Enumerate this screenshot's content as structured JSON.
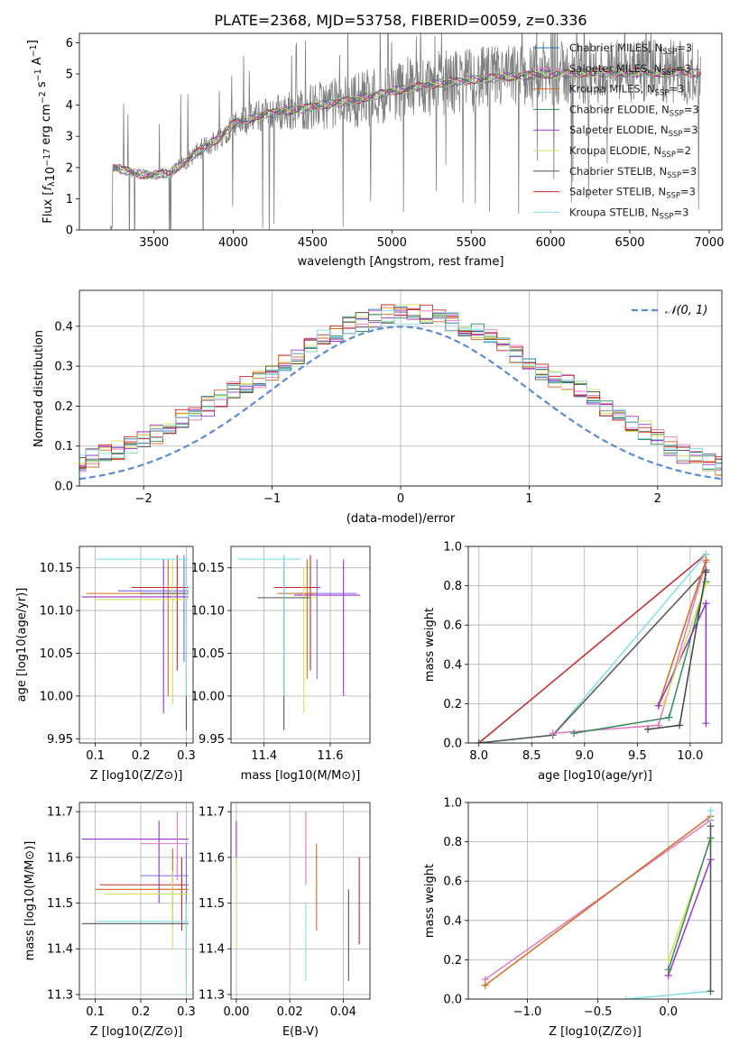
{
  "chart_data": [
    {
      "type": "line",
      "title": "PLATE=2368, MJD=53758, FIBERID=0059, z=0.336",
      "xlabel": "wavelength [Angstrom, rest frame]",
      "ylabel": "Flux [f_λ 10^-17 erg cm^-2 s^-1 A^-1]",
      "xlim": [
        3030,
        7080
      ],
      "ylim": [
        0,
        6.3
      ],
      "xticks": [
        "3500",
        "4000",
        "4500",
        "5000",
        "5500",
        "6000",
        "6500",
        "7000"
      ],
      "yticks": [
        "0",
        "1",
        "2",
        "3",
        "4",
        "5",
        "6"
      ],
      "observed_color": "#808080",
      "continuum": [
        [
          3240,
          2.0
        ],
        [
          3400,
          1.8
        ],
        [
          3500,
          1.75
        ],
        [
          3600,
          1.85
        ],
        [
          3700,
          2.2
        ],
        [
          3800,
          2.6
        ],
        [
          3900,
          2.9
        ],
        [
          4000,
          3.4
        ],
        [
          4200,
          3.7
        ],
        [
          4500,
          3.95
        ],
        [
          4800,
          4.2
        ],
        [
          5000,
          4.45
        ],
        [
          5300,
          4.7
        ],
        [
          5600,
          4.85
        ],
        [
          6000,
          5.0
        ],
        [
          6400,
          5.05
        ],
        [
          6900,
          5.05
        ]
      ],
      "legend": [
        {
          "name": "Chabrier MILES, N_SSP=3",
          "base": "Chabrier MILES, N",
          "sub": "SSP",
          "tail": "=3",
          "color": "#1f77b4"
        },
        {
          "name": "Salpeter MILES, N_SSP=3",
          "base": "Salpeter MILES, N",
          "sub": "SSP",
          "tail": "=3",
          "color": "#e377c2"
        },
        {
          "name": "Kroupa MILES, N_SSP=3",
          "base": "Kroupa MILES, N",
          "sub": "SSP",
          "tail": "=3",
          "color": "#d2691e"
        },
        {
          "name": "Chabrier ELODIE, N_SSP=3",
          "base": "Chabrier ELODIE, N",
          "sub": "SSP",
          "tail": "=3",
          "color": "#2e8b57"
        },
        {
          "name": "Salpeter ELODIE, N_SSP=3",
          "base": "Salpeter ELODIE, N",
          "sub": "SSP",
          "tail": "=3",
          "color": "#9932cc"
        },
        {
          "name": "Kroupa ELODIE, N_SSP=2",
          "base": "Kroupa ELODIE, N",
          "sub": "SSP",
          "tail": "=2",
          "color": "#d4e157"
        },
        {
          "name": "Chabrier STELIB, N_SSP=3",
          "base": "Chabrier STELIB, N",
          "sub": "SSP",
          "tail": "=3",
          "color": "#555555"
        },
        {
          "name": "Salpeter STELIB, N_SSP=3",
          "base": "Salpeter STELIB, N",
          "sub": "SSP",
          "tail": "=3",
          "color": "#c62828"
        },
        {
          "name": "Kroupa STELIB, N_SSP=3",
          "base": "Kroupa STELIB, N",
          "sub": "SSP",
          "tail": "=3",
          "color": "#80deea"
        }
      ]
    },
    {
      "type": "histogram",
      "xlabel": "(data-model)/error",
      "ylabel": "Normed distribution",
      "xlim": [
        -2.5,
        2.5
      ],
      "ylim": [
        0,
        0.49
      ],
      "xticks": [
        "-2",
        "-1",
        "0",
        "1",
        "2"
      ],
      "yticks": [
        "0.0",
        "0.1",
        "0.2",
        "0.3",
        "0.4"
      ],
      "legend": "𝒩(0, 1)",
      "gaussian_color": "#5b8bd6",
      "bin_width": 0.1,
      "bins_center": [
        0.02,
        0.02,
        0.03,
        0.03,
        0.04,
        0.05,
        0.05,
        0.05,
        0.06,
        0.07,
        0.08,
        0.09,
        0.1,
        0.12,
        0.13,
        0.15,
        0.17,
        0.19,
        0.2,
        0.22,
        0.24,
        0.25,
        0.27,
        0.29,
        0.31,
        0.33,
        0.35,
        0.37,
        0.38,
        0.4,
        0.41,
        0.42,
        0.43,
        0.43,
        0.43,
        0.43,
        0.42,
        0.41,
        0.4,
        0.39,
        0.37,
        0.35,
        0.33,
        0.31,
        0.29,
        0.27,
        0.26,
        0.24,
        0.22,
        0.2,
        0.18,
        0.16,
        0.14,
        0.12,
        0.1,
        0.08,
        0.07,
        0.06,
        0.05,
        0.04,
        0.04,
        0.03,
        0.03,
        0.03,
        0.02,
        0.02,
        0.02
      ]
    },
    {
      "type": "scatter",
      "xlabel": "Z [log10(Z/Z⊙)]",
      "ylabel": "age [log10(age/yr)]",
      "xlim": [
        0.065,
        0.315
      ],
      "ylim": [
        9.945,
        10.175
      ],
      "xticks": [
        "0.1",
        "0.2",
        "0.3"
      ],
      "yticks": [
        "9.95",
        "10.00",
        "10.05",
        "10.10",
        "10.15"
      ],
      "points": [
        {
          "x": 0.28,
          "y": 10.127,
          "xerr": [
            0.18,
            0.305
          ],
          "yerr": [
            10.03,
            10.165
          ],
          "color": "#c62828"
        },
        {
          "x": 0.295,
          "y": 10.123,
          "xerr": [
            0.15,
            0.305
          ],
          "yerr": [
            10.04,
            10.165
          ],
          "color": "#7b68ee"
        },
        {
          "x": 0.26,
          "y": 10.12,
          "xerr": [
            0.08,
            0.305
          ],
          "yerr": [
            10.0,
            10.16
          ],
          "color": "#d2691e"
        },
        {
          "x": 0.25,
          "y": 10.116,
          "xerr": [
            0.07,
            0.305
          ],
          "yerr": [
            9.98,
            10.16
          ],
          "color": "#9932cc"
        },
        {
          "x": 0.27,
          "y": 10.113,
          "xerr": [
            0.1,
            0.305
          ],
          "yerr": [
            9.99,
            10.16
          ],
          "color": "#d4e157"
        },
        {
          "x": 0.3,
          "y": 10.12,
          "xerr": [
            0.2,
            0.305
          ],
          "yerr": [
            9.96,
            10.16
          ],
          "color": "#555555"
        },
        {
          "x": 0.3,
          "y": 10.16,
          "xerr": [
            0.1,
            0.305
          ],
          "yerr": [
            10.0,
            10.165
          ],
          "color": "#80deea"
        }
      ]
    },
    {
      "type": "scatter",
      "xlabel": "mass [log10(M/M⊙)]",
      "ylabel": "",
      "xlim": [
        11.3,
        11.72
      ],
      "ylim": [
        9.945,
        10.175
      ],
      "xticks": [
        "11.4",
        "11.6"
      ],
      "yticks": [
        "9.95",
        "10.00",
        "10.05",
        "10.10",
        "10.15"
      ],
      "points": [
        {
          "x": 11.54,
          "y": 10.127,
          "xerr": [
            11.43,
            11.57
          ],
          "yerr": [
            10.03,
            10.165
          ],
          "color": "#c62828"
        },
        {
          "x": 11.56,
          "y": 10.12,
          "xerr": [
            11.5,
            11.68
          ],
          "yerr": [
            10.02,
            10.16
          ],
          "color": "#7b68ee"
        },
        {
          "x": 11.53,
          "y": 10.12,
          "xerr": [
            11.44,
            11.56
          ],
          "yerr": [
            10.02,
            10.16
          ],
          "color": "#d2691e"
        },
        {
          "x": 11.64,
          "y": 10.118,
          "xerr": [
            11.49,
            11.69
          ],
          "yerr": [
            10.0,
            10.16
          ],
          "color": "#9932cc"
        },
        {
          "x": 11.52,
          "y": 10.115,
          "xerr": [
            11.44,
            11.56
          ],
          "yerr": [
            9.98,
            10.15
          ],
          "color": "#d4e157"
        },
        {
          "x": 11.46,
          "y": 10.115,
          "xerr": [
            11.38,
            11.54
          ],
          "yerr": [
            9.96,
            10.165
          ],
          "color": "#555555"
        },
        {
          "x": 11.46,
          "y": 10.16,
          "xerr": [
            11.32,
            11.51
          ],
          "yerr": [
            10.0,
            10.165
          ],
          "color": "#80deea"
        }
      ]
    },
    {
      "type": "line",
      "xlabel": "age [log10(age/yr)]",
      "ylabel": "mass weight",
      "xlim": [
        7.9,
        10.3
      ],
      "ylim": [
        0,
        1.0
      ],
      "xticks": [
        "8.0",
        "8.5",
        "9.0",
        "9.5",
        "10.0"
      ],
      "yticks": [
        "0.0",
        "0.2",
        "0.4",
        "0.6",
        "0.8",
        "1.0"
      ],
      "series": [
        {
          "color": "#c62828",
          "points": [
            [
              8.0,
              0.0
            ],
            [
              10.15,
              0.96
            ]
          ]
        },
        {
          "color": "#80deea",
          "points": [
            [
              8.0,
              0.0
            ],
            [
              8.7,
              0.04
            ],
            [
              10.15,
              0.96
            ]
          ]
        },
        {
          "color": "#555555",
          "points": [
            [
              8.0,
              0.0
            ],
            [
              8.7,
              0.04
            ],
            [
              10.15,
              0.88
            ]
          ]
        },
        {
          "color": "#e377c2",
          "points": [
            [
              8.7,
              0.05
            ],
            [
              9.7,
              0.09
            ],
            [
              10.15,
              0.92
            ]
          ]
        },
        {
          "color": "#d2691e",
          "points": [
            [
              9.7,
              0.19
            ],
            [
              10.15,
              0.93
            ]
          ]
        },
        {
          "color": "#2e8b57",
          "points": [
            [
              8.9,
              0.05
            ],
            [
              9.8,
              0.13
            ],
            [
              10.15,
              0.82
            ]
          ]
        },
        {
          "color": "#9932cc",
          "points": [
            [
              9.7,
              0.19
            ],
            [
              10.15,
              0.71
            ],
            [
              10.15,
              0.1
            ]
          ]
        },
        {
          "color": "#d4e157",
          "points": [
            [
              9.75,
              0.2
            ],
            [
              10.15,
              0.81
            ]
          ]
        },
        {
          "color": "#444444",
          "points": [
            [
              9.6,
              0.07
            ],
            [
              9.9,
              0.09
            ],
            [
              10.15,
              0.87
            ]
          ]
        }
      ]
    },
    {
      "type": "scatter",
      "xlabel": "Z [log10(Z/Z⊙)]",
      "ylabel": "mass [log10(M/M⊙)]",
      "xlim": [
        0.065,
        0.315
      ],
      "ylim": [
        11.29,
        11.72
      ],
      "xticks": [
        "0.1",
        "0.2",
        "0.3"
      ],
      "yticks": [
        "11.3",
        "11.4",
        "11.5",
        "11.6",
        "11.7"
      ],
      "points": [
        {
          "x": 0.29,
          "y": 11.54,
          "xerr": [
            0.11,
            0.305
          ],
          "yerr": [
            11.44,
            11.6
          ],
          "color": "#c62828"
        },
        {
          "x": 0.3,
          "y": 11.56,
          "xerr": [
            0.2,
            0.305
          ],
          "yerr": [
            11.46,
            11.63
          ],
          "color": "#7b68ee"
        },
        {
          "x": 0.27,
          "y": 11.53,
          "xerr": [
            0.1,
            0.305
          ],
          "yerr": [
            11.45,
            11.62
          ],
          "color": "#d2691e"
        },
        {
          "x": 0.24,
          "y": 11.64,
          "xerr": [
            0.07,
            0.305
          ],
          "yerr": [
            11.5,
            11.68
          ],
          "color": "#9932cc"
        },
        {
          "x": 0.27,
          "y": 11.52,
          "xerr": [
            0.12,
            0.305
          ],
          "yerr": [
            11.4,
            11.57
          ],
          "color": "#d4e157"
        },
        {
          "x": 0.3,
          "y": 11.455,
          "xerr": [
            0.07,
            0.305
          ],
          "yerr": [
            11.33,
            11.5
          ],
          "color": "#555555"
        },
        {
          "x": 0.3,
          "y": 11.46,
          "xerr": [
            0.1,
            0.305
          ],
          "yerr": [
            11.3,
            11.5
          ],
          "color": "#80deea"
        },
        {
          "x": 0.28,
          "y": 11.63,
          "xerr": [
            0.2,
            0.305
          ],
          "yerr": [
            11.55,
            11.7
          ],
          "color": "#e377c2"
        }
      ]
    },
    {
      "type": "scatter",
      "xlabel": "E(B-V)",
      "ylabel": "",
      "xlim": [
        -0.002,
        0.05
      ],
      "ylim": [
        11.29,
        11.72
      ],
      "xticks": [
        "0.00",
        "0.02",
        "0.04"
      ],
      "yticks": [
        "11.3",
        "11.4",
        "11.5",
        "11.6",
        "11.7"
      ],
      "points": [
        {
          "x": 0.0,
          "y": 11.64,
          "yerr": [
            11.57,
            11.68
          ],
          "color": "#9932cc"
        },
        {
          "x": 0.0,
          "y": 11.5,
          "yerr": [
            11.4,
            11.6
          ],
          "color": "#d4e157"
        },
        {
          "x": 0.026,
          "y": 11.63,
          "yerr": [
            11.54,
            11.7
          ],
          "color": "#e377c2"
        },
        {
          "x": 0.026,
          "y": 11.42,
          "yerr": [
            11.33,
            11.5
          ],
          "color": "#80deea"
        },
        {
          "x": 0.03,
          "y": 11.53,
          "yerr": [
            11.44,
            11.63
          ],
          "color": "#d2691e"
        },
        {
          "x": 0.042,
          "y": 11.43,
          "yerr": [
            11.33,
            11.53
          ],
          "color": "#555555"
        },
        {
          "x": 0.046,
          "y": 11.5,
          "yerr": [
            11.41,
            11.6
          ],
          "color": "#c62828"
        }
      ]
    },
    {
      "type": "line",
      "xlabel": "Z [log10(Z/Z⊙)]",
      "ylabel": "mass weight",
      "xlim": [
        -1.42,
        0.38
      ],
      "ylim": [
        0,
        1.0
      ],
      "xticks": [
        "-1.0",
        "-0.5",
        "0.0"
      ],
      "yticks": [
        "0.0",
        "0.2",
        "0.4",
        "0.6",
        "0.8",
        "1.0"
      ],
      "series": [
        {
          "color": "#e377c2",
          "points": [
            [
              -1.3,
              0.1
            ],
            [
              0.3,
              0.91
            ]
          ]
        },
        {
          "color": "#d2691e",
          "points": [
            [
              -1.3,
              0.07
            ],
            [
              0.3,
              0.93
            ]
          ]
        },
        {
          "color": "#9932cc",
          "points": [
            [
              0.0,
              0.12
            ],
            [
              0.3,
              0.71
            ]
          ]
        },
        {
          "color": "#d4e157",
          "points": [
            [
              0.0,
              0.2
            ],
            [
              0.3,
              0.81
            ]
          ]
        },
        {
          "color": "#2e8b57",
          "points": [
            [
              0.0,
              0.15
            ],
            [
              0.3,
              0.82
            ]
          ]
        },
        {
          "color": "#80deea",
          "points": [
            [
              -0.3,
              0.0
            ],
            [
              0.3,
              0.04
            ],
            [
              0.3,
              0.96
            ]
          ]
        },
        {
          "color": "#555555",
          "points": [
            [
              0.3,
              0.04
            ],
            [
              0.3,
              0.88
            ]
          ]
        }
      ]
    }
  ]
}
